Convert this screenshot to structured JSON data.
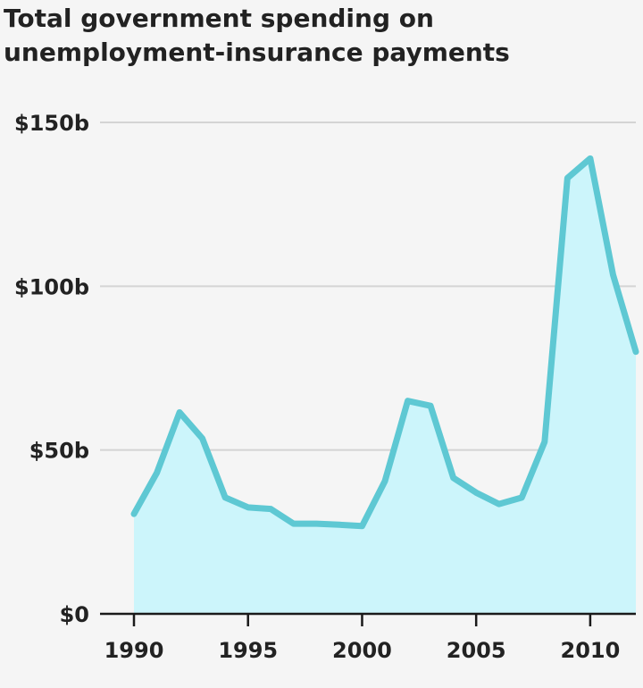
{
  "chart_data": {
    "type": "area",
    "title_lines": [
      "Total government spending on",
      "unemployment-insurance payments"
    ],
    "xlabel": "",
    "ylabel": "",
    "x": [
      1990,
      1991,
      1992,
      1993,
      1994,
      1995,
      1996,
      1997,
      1998,
      1999,
      2000,
      2001,
      2002,
      2003,
      2004,
      2005,
      2006,
      2007,
      2008,
      2009,
      2010,
      2011,
      2012
    ],
    "values": [
      30.5,
      43,
      61.5,
      53.5,
      35.5,
      32.5,
      32,
      27.5,
      27.5,
      27.2,
      26.8,
      40.5,
      65,
      63.5,
      41.5,
      37,
      33.5,
      35.5,
      52.5,
      133,
      139,
      103.5,
      80
    ],
    "xlim": [
      1990,
      2012
    ],
    "ylim": [
      0,
      150
    ],
    "x_ticks": [
      1990,
      1995,
      2000,
      2005,
      2010
    ],
    "x_tick_labels": [
      "1990",
      "1995",
      "2000",
      "2005",
      "2010"
    ],
    "y_ticks": [
      0,
      50,
      100,
      150
    ],
    "y_tick_labels": [
      "$0",
      "$50b",
      "$100b",
      "$150b"
    ],
    "grid": true,
    "colors": {
      "line": "#5ec8d3",
      "fill": "#ccf5fb",
      "grid": "#d4d4d4",
      "axis": "#1a1a1a",
      "background": "#f5f5f5"
    }
  }
}
